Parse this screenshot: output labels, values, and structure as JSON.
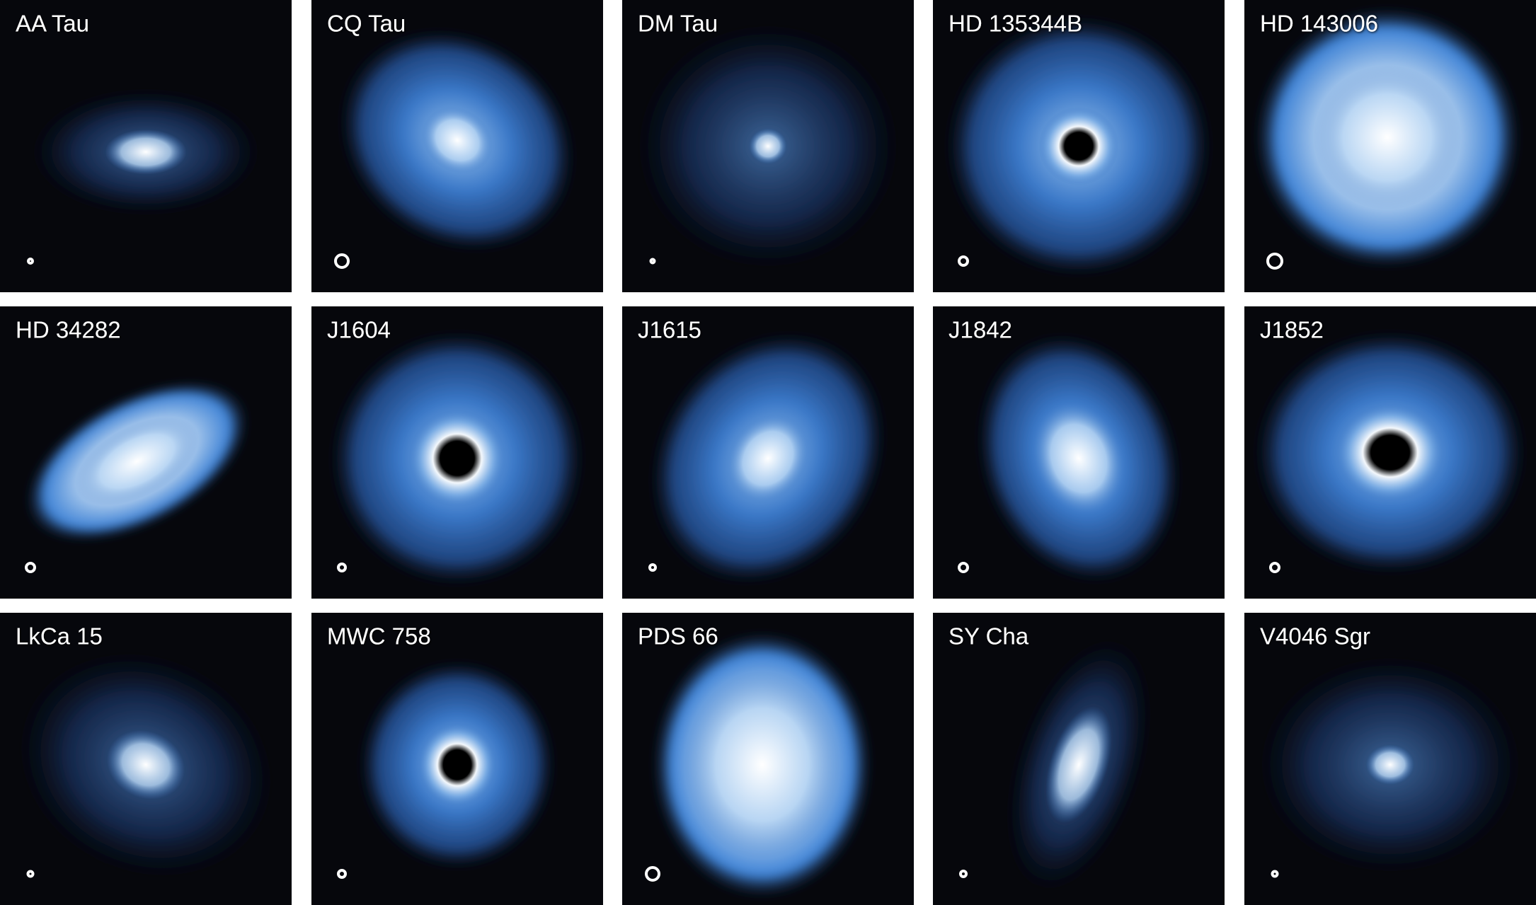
{
  "panels": [
    {
      "label": "AA Tau"
    },
    {
      "label": "CQ Tau"
    },
    {
      "label": "DM Tau"
    },
    {
      "label": "HD 135344B"
    },
    {
      "label": "HD 143006"
    },
    {
      "label": "HD 34282"
    },
    {
      "label": "J1604"
    },
    {
      "label": "J1615"
    },
    {
      "label": "J1842"
    },
    {
      "label": "J1852"
    },
    {
      "label": "LkCa 15"
    },
    {
      "label": "MWC 758"
    },
    {
      "label": "PDS 66"
    },
    {
      "label": "SY Cha"
    },
    {
      "label": "V4046 Sgr"
    }
  ]
}
